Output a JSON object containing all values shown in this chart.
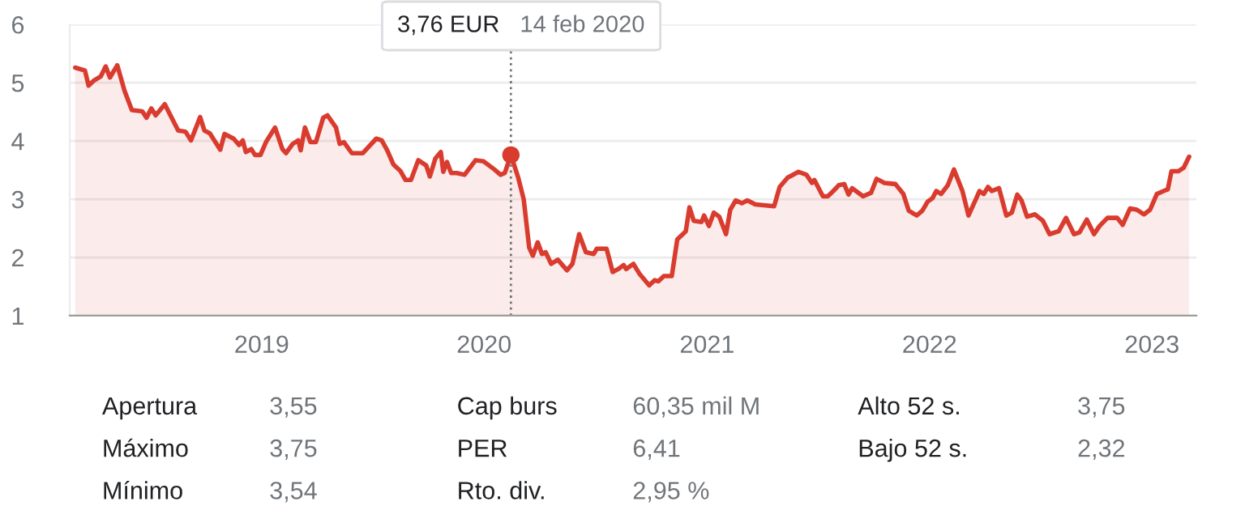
{
  "chart_data": {
    "type": "area",
    "x": [
      "2018-03-01",
      "2018-03-17",
      "2018-03-23",
      "2018-04-01",
      "2018-04-12",
      "2018-04-20",
      "2018-04-27",
      "2018-05-09",
      "2018-05-21",
      "2018-06-02",
      "2018-06-19",
      "2018-06-26",
      "2018-07-04",
      "2018-07-11",
      "2018-07-26",
      "2018-08-17",
      "2018-08-29",
      "2018-09-07",
      "2018-09-22",
      "2018-09-29",
      "2018-10-08",
      "2018-10-25",
      "2018-11-01",
      "2018-11-16",
      "2018-11-25",
      "2018-12-01",
      "2018-12-06",
      "2018-12-15",
      "2018-12-21",
      "2018-12-30",
      "2019-01-08",
      "2019-01-23",
      "2019-02-04",
      "2019-02-10",
      "2019-02-21",
      "2019-03-02",
      "2019-03-06",
      "2019-03-13",
      "2019-03-22",
      "2019-03-31",
      "2019-04-12",
      "2019-04-19",
      "2019-05-03",
      "2019-05-09",
      "2019-05-16",
      "2019-05-29",
      "2019-06-16",
      "2019-07-08",
      "2019-07-17",
      "2019-07-26",
      "2019-08-05",
      "2019-08-17",
      "2019-08-25",
      "2019-09-03",
      "2019-09-15",
      "2019-09-28",
      "2019-10-04",
      "2019-10-13",
      "2019-10-22",
      "2019-10-26",
      "2019-11-01",
      "2019-11-08",
      "2019-11-17",
      "2019-11-30",
      "2019-12-18",
      "2019-12-31",
      "2020-01-18",
      "2020-01-28",
      "2020-02-04",
      "2020-02-14",
      "2020-02-26",
      "2020-03-06",
      "2020-03-15",
      "2020-03-21",
      "2020-03-29",
      "2020-04-05",
      "2020-04-11",
      "2020-04-20",
      "2020-05-01",
      "2020-05-16",
      "2020-05-25",
      "2020-06-05",
      "2020-06-16",
      "2020-06-29",
      "2020-07-04",
      "2020-07-20",
      "2020-07-30",
      "2020-08-08",
      "2020-08-17",
      "2020-08-21",
      "2020-09-02",
      "2020-09-12",
      "2020-09-28",
      "2020-10-07",
      "2020-10-13",
      "2020-10-22",
      "2020-11-04",
      "2020-11-13",
      "2020-11-27",
      "2020-12-03",
      "2020-12-10",
      "2020-12-23",
      "2020-12-27",
      "2021-01-04",
      "2021-01-12",
      "2021-01-21",
      "2021-02-01",
      "2021-02-08",
      "2021-02-17",
      "2021-02-27",
      "2021-03-08",
      "2021-03-21",
      "2021-04-21",
      "2021-04-30",
      "2021-05-13",
      "2021-05-31",
      "2021-06-13",
      "2021-06-22",
      "2021-06-26",
      "2021-07-10",
      "2021-07-18",
      "2021-07-27",
      "2021-08-05",
      "2021-08-14",
      "2021-08-21",
      "2021-08-27",
      "2021-09-14",
      "2021-09-27",
      "2021-10-06",
      "2021-10-19",
      "2021-11-06",
      "2021-11-19",
      "2021-11-28",
      "2021-12-11",
      "2021-12-20",
      "2021-12-29",
      "2022-01-06",
      "2022-01-12",
      "2022-01-20",
      "2022-01-31",
      "2022-02-10",
      "2022-02-24",
      "2022-03-06",
      "2022-03-18",
      "2022-03-24",
      "2022-03-31",
      "2022-04-07",
      "2022-04-13",
      "2022-04-25",
      "2022-05-07",
      "2022-05-16",
      "2022-05-25",
      "2022-06-01",
      "2022-06-10",
      "2022-06-23",
      "2022-07-06",
      "2022-07-17",
      "2022-08-01",
      "2022-08-13",
      "2022-08-26",
      "2022-09-04",
      "2022-09-16",
      "2022-09-28",
      "2022-10-07",
      "2022-10-20",
      "2022-11-05",
      "2022-11-14",
      "2022-11-26",
      "2022-12-07",
      "2022-12-19",
      "2022-12-29",
      "2023-01-09",
      "2023-01-20",
      "2023-01-27",
      "2023-02-02",
      "2023-02-13",
      "2023-02-22",
      "2023-03-03"
    ],
    "series": [
      {
        "color": "#d93c2f",
        "values": [
          5.26,
          5.21,
          4.95,
          5.04,
          5.11,
          5.28,
          5.09,
          5.3,
          4.86,
          4.53,
          4.51,
          4.4,
          4.56,
          4.44,
          4.63,
          4.18,
          4.16,
          4.01,
          4.41,
          4.18,
          4.13,
          3.85,
          4.12,
          4.04,
          3.93,
          4.01,
          3.81,
          3.86,
          3.76,
          3.76,
          3.98,
          4.23,
          3.86,
          3.79,
          3.95,
          4.01,
          3.84,
          4.23,
          3.98,
          3.98,
          4.4,
          4.44,
          4.23,
          3.95,
          3.98,
          3.79,
          3.79,
          4.04,
          4.01,
          3.84,
          3.6,
          3.48,
          3.33,
          3.33,
          3.67,
          3.58,
          3.39,
          3.7,
          3.81,
          3.47,
          3.64,
          3.45,
          3.45,
          3.42,
          3.67,
          3.65,
          3.51,
          3.42,
          3.45,
          3.76,
          3.37,
          3.0,
          2.17,
          2.03,
          2.26,
          2.06,
          2.09,
          1.89,
          1.96,
          1.78,
          1.89,
          2.4,
          2.09,
          2.06,
          2.15,
          2.15,
          1.75,
          1.8,
          1.87,
          1.8,
          1.89,
          1.72,
          1.52,
          1.61,
          1.59,
          1.68,
          1.68,
          2.31,
          2.45,
          2.86,
          2.63,
          2.61,
          2.72,
          2.54,
          2.77,
          2.7,
          2.4,
          2.82,
          2.98,
          2.93,
          2.98,
          2.91,
          2.88,
          3.21,
          3.37,
          3.47,
          3.42,
          3.28,
          3.33,
          3.05,
          3.05,
          3.14,
          3.24,
          3.26,
          3.08,
          3.19,
          3.05,
          3.11,
          3.35,
          3.28,
          3.26,
          3.09,
          2.8,
          2.72,
          2.8,
          2.96,
          3.02,
          3.14,
          3.09,
          3.24,
          3.51,
          3.14,
          2.72,
          3.0,
          3.14,
          3.09,
          3.21,
          3.14,
          3.19,
          2.72,
          2.77,
          3.08,
          2.98,
          2.7,
          2.74,
          2.63,
          2.4,
          2.45,
          2.68,
          2.4,
          2.43,
          2.65,
          2.4,
          2.54,
          2.68,
          2.68,
          2.56,
          2.84,
          2.82,
          2.74,
          2.82,
          3.09,
          3.14,
          3.17,
          3.48,
          3.48,
          3.54,
          3.73
        ]
      },
      {
        "type": "scatter",
        "color": "#d93c2f",
        "x": [
          "2020-02-14"
        ],
        "values": [
          3.76
        ],
        "marker": "circle"
      }
    ],
    "xlim": [
      "2018-02-20",
      "2023-03-15"
    ],
    "xticks": [
      {
        "value": "2019-01-01",
        "label": "2019"
      },
      {
        "value": "2020-01-01",
        "label": "2020"
      },
      {
        "value": "2021-01-01",
        "label": "2021"
      },
      {
        "value": "2022-01-01",
        "label": "2022"
      },
      {
        "value": "2023-01-01",
        "label": "2023"
      }
    ],
    "ylim": [
      1,
      6
    ],
    "yticks": [
      1,
      2,
      3,
      4,
      5,
      6
    ],
    "grid": "y",
    "ref_lines": [
      {
        "axis": "x",
        "value": "2020-02-14",
        "label": null,
        "color": "#757575",
        "line_style": "dotted"
      }
    ],
    "annotations": [
      "3,76 EUR",
      "14 feb 2020",
      "Apertura",
      "3,55",
      "Cap burs",
      "60,35 mil M",
      "Alto 52 s.",
      "3,75",
      "Máximo",
      "3,75",
      "PER",
      "6,41",
      "Bajo 52 s.",
      "2,32",
      "Mínimo",
      "3,54",
      "Rto. div.",
      "2,95 %"
    ]
  }
}
